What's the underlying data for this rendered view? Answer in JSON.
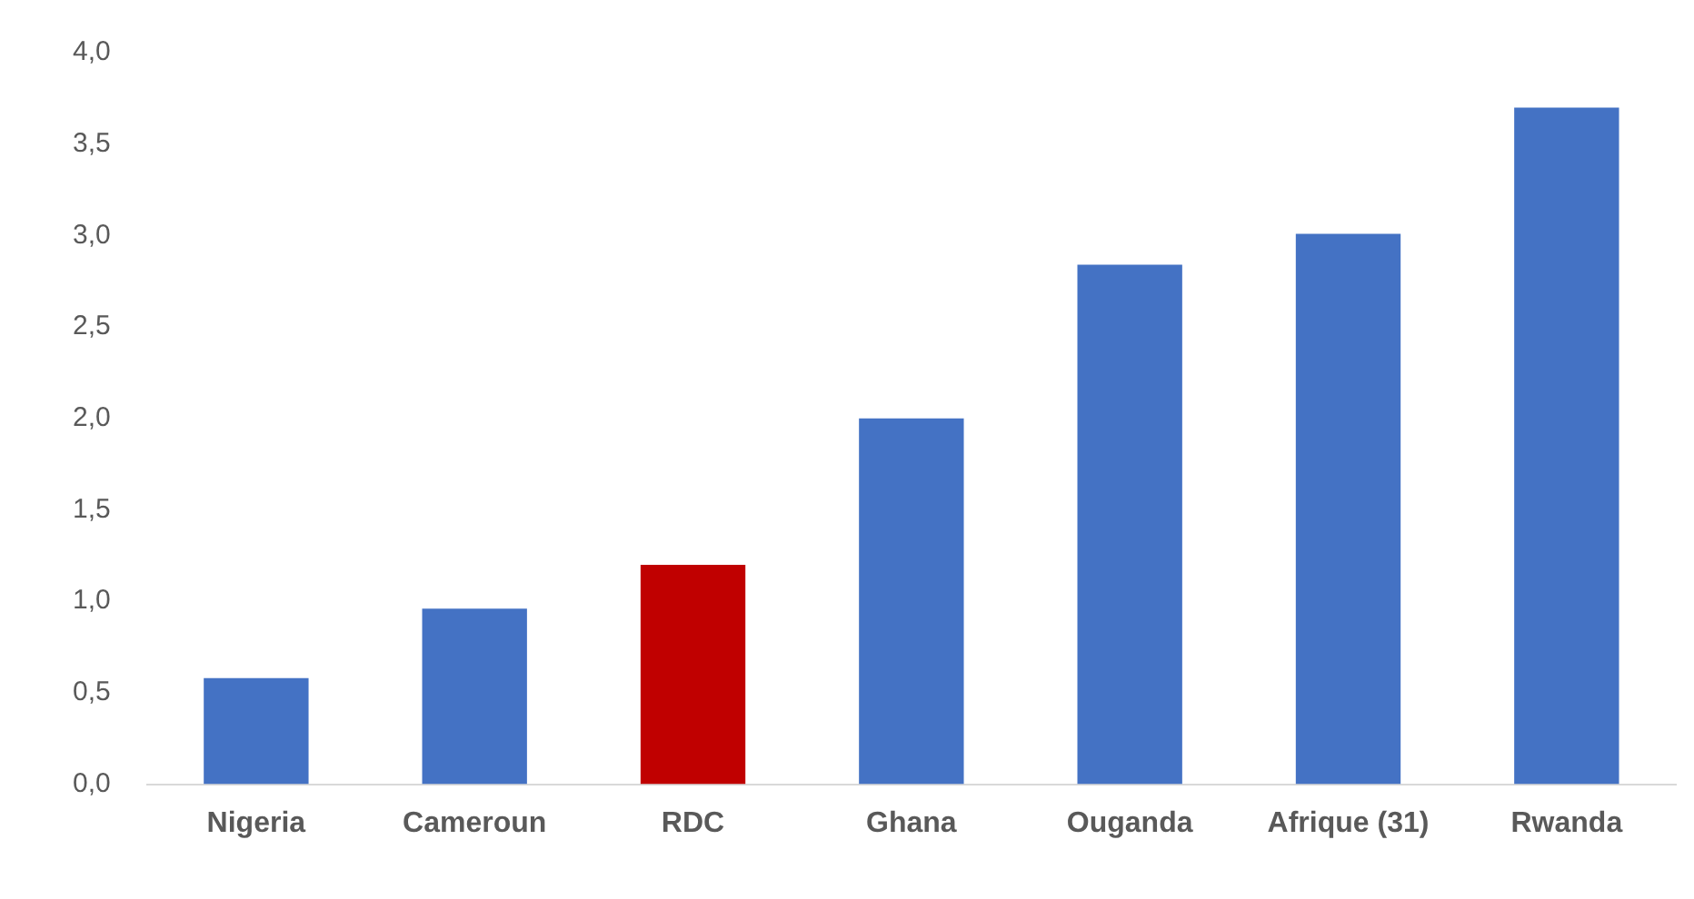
{
  "chart_data": {
    "type": "bar",
    "categories": [
      "Nigeria",
      "Cameroun",
      "RDC",
      "Ghana",
      "Ouganda",
      "Afrique (31)",
      "Rwanda"
    ],
    "values": [
      0.58,
      0.96,
      1.2,
      2.0,
      2.84,
      3.01,
      3.7
    ],
    "colors": [
      "#4472c4",
      "#4472c4",
      "#c00000",
      "#4472c4",
      "#4472c4",
      "#4472c4",
      "#4472c4"
    ],
    "ylim": [
      0,
      4
    ],
    "yticks": [
      {
        "value": 0,
        "label": "0,0"
      },
      {
        "value": 0.5,
        "label": "0,5"
      },
      {
        "value": 1,
        "label": "1,0"
      },
      {
        "value": 1.5,
        "label": "1,5"
      },
      {
        "value": 2,
        "label": "2,0"
      },
      {
        "value": 2.5,
        "label": "2,5"
      },
      {
        "value": 3,
        "label": "3,0"
      },
      {
        "value": 3.5,
        "label": "3,5"
      },
      {
        "value": 4,
        "label": "4,0"
      }
    ],
    "grid": false,
    "legend": false
  }
}
